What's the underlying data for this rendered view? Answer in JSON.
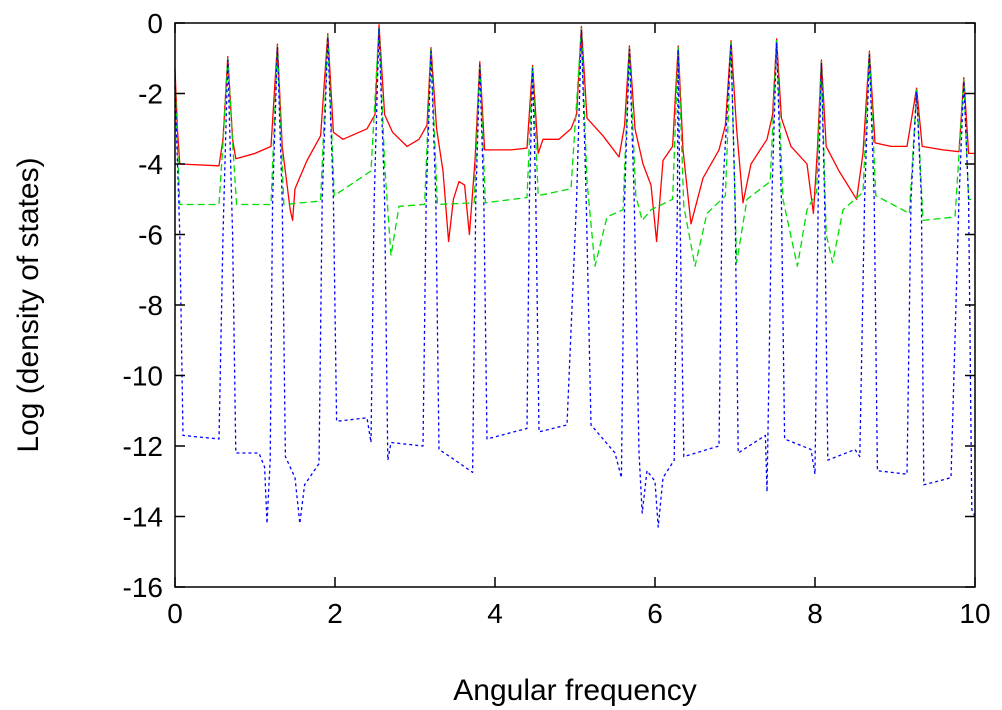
{
  "chart_data": {
    "type": "line",
    "title": "",
    "xlabel": "Angular frequency",
    "ylabel": "Log (density of states)",
    "xlim": [
      0,
      10
    ],
    "ylim": [
      -16,
      0
    ],
    "xticks": [
      0,
      2,
      4,
      6,
      8,
      10
    ],
    "yticks": [
      0,
      -2,
      -4,
      -6,
      -8,
      -10,
      -12,
      -14,
      -16
    ],
    "grid": false,
    "legend": "none",
    "series": [
      {
        "color": "#ff0000",
        "dash": "solid",
        "points": [
          [
            0.0,
            -1.3
          ],
          [
            0.03,
            -3.0
          ],
          [
            0.06,
            -4.0
          ],
          [
            0.55,
            -4.05
          ],
          [
            0.6,
            -3.3
          ],
          [
            0.66,
            -0.95
          ],
          [
            0.72,
            -3.3
          ],
          [
            0.76,
            -3.85
          ],
          [
            1.0,
            -3.7
          ],
          [
            1.2,
            -3.5
          ],
          [
            1.28,
            -0.6
          ],
          [
            1.34,
            -3.5
          ],
          [
            1.44,
            -5.3
          ],
          [
            1.47,
            -5.6
          ],
          [
            1.5,
            -4.7
          ],
          [
            1.65,
            -3.9
          ],
          [
            1.82,
            -3.2
          ],
          [
            1.91,
            -0.3
          ],
          [
            1.98,
            -3.1
          ],
          [
            2.1,
            -3.3
          ],
          [
            2.4,
            -3.0
          ],
          [
            2.5,
            -2.6
          ],
          [
            2.55,
            -0.05
          ],
          [
            2.62,
            -2.6
          ],
          [
            2.72,
            -3.1
          ],
          [
            2.9,
            -3.5
          ],
          [
            3.05,
            -3.3
          ],
          [
            3.15,
            -2.9
          ],
          [
            3.2,
            -0.7
          ],
          [
            3.27,
            -3.0
          ],
          [
            3.35,
            -4.2
          ],
          [
            3.42,
            -6.2
          ],
          [
            3.48,
            -5.0
          ],
          [
            3.55,
            -4.5
          ],
          [
            3.62,
            -4.6
          ],
          [
            3.68,
            -6.0
          ],
          [
            3.75,
            -3.9
          ],
          [
            3.81,
            -1.1
          ],
          [
            3.87,
            -3.6
          ],
          [
            4.0,
            -3.6
          ],
          [
            4.2,
            -3.6
          ],
          [
            4.4,
            -3.55
          ],
          [
            4.47,
            -1.2
          ],
          [
            4.54,
            -3.7
          ],
          [
            4.6,
            -3.3
          ],
          [
            4.8,
            -3.3
          ],
          [
            4.95,
            -3.0
          ],
          [
            5.02,
            -2.6
          ],
          [
            5.08,
            -0.1
          ],
          [
            5.15,
            -2.7
          ],
          [
            5.35,
            -3.2
          ],
          [
            5.55,
            -3.8
          ],
          [
            5.62,
            -2.9
          ],
          [
            5.68,
            -0.65
          ],
          [
            5.75,
            -3.0
          ],
          [
            5.85,
            -4.0
          ],
          [
            5.95,
            -4.6
          ],
          [
            6.02,
            -6.2
          ],
          [
            6.1,
            -3.9
          ],
          [
            6.22,
            -3.5
          ],
          [
            6.29,
            -0.65
          ],
          [
            6.35,
            -3.6
          ],
          [
            6.45,
            -5.7
          ],
          [
            6.6,
            -4.4
          ],
          [
            6.8,
            -3.6
          ],
          [
            6.88,
            -2.9
          ],
          [
            6.95,
            -0.5
          ],
          [
            7.02,
            -3.0
          ],
          [
            7.1,
            -5.1
          ],
          [
            7.2,
            -4.0
          ],
          [
            7.4,
            -3.3
          ],
          [
            7.47,
            -2.6
          ],
          [
            7.52,
            -0.45
          ],
          [
            7.58,
            -2.7
          ],
          [
            7.7,
            -3.5
          ],
          [
            7.9,
            -4.0
          ],
          [
            7.98,
            -5.4
          ],
          [
            8.03,
            -3.6
          ],
          [
            8.08,
            -1.05
          ],
          [
            8.14,
            -3.5
          ],
          [
            8.3,
            -4.2
          ],
          [
            8.52,
            -5.0
          ],
          [
            8.6,
            -3.7
          ],
          [
            8.68,
            -0.8
          ],
          [
            8.75,
            -3.4
          ],
          [
            8.95,
            -3.5
          ],
          [
            9.15,
            -3.5
          ],
          [
            9.27,
            -1.85
          ],
          [
            9.34,
            -3.5
          ],
          [
            9.6,
            -3.6
          ],
          [
            9.8,
            -3.65
          ],
          [
            9.86,
            -1.55
          ],
          [
            9.92,
            -3.7
          ],
          [
            10.0,
            -3.7
          ]
        ]
      },
      {
        "color": "#00dd00",
        "dash": "dashed",
        "points": [
          [
            0.0,
            -1.6
          ],
          [
            0.03,
            -3.4
          ],
          [
            0.06,
            -5.15
          ],
          [
            0.55,
            -5.15
          ],
          [
            0.6,
            -3.4
          ],
          [
            0.66,
            -1.0
          ],
          [
            0.72,
            -3.4
          ],
          [
            0.77,
            -5.15
          ],
          [
            1.2,
            -5.15
          ],
          [
            1.28,
            -0.65
          ],
          [
            1.36,
            -5.15
          ],
          [
            1.82,
            -5.05
          ],
          [
            1.91,
            -0.35
          ],
          [
            1.99,
            -4.9
          ],
          [
            2.45,
            -4.2
          ],
          [
            2.55,
            -0.1
          ],
          [
            2.62,
            -4.0
          ],
          [
            2.7,
            -6.6
          ],
          [
            2.8,
            -5.2
          ],
          [
            3.12,
            -5.15
          ],
          [
            3.2,
            -0.75
          ],
          [
            3.28,
            -5.15
          ],
          [
            3.74,
            -5.1
          ],
          [
            3.81,
            -1.15
          ],
          [
            3.88,
            -5.1
          ],
          [
            4.4,
            -4.95
          ],
          [
            4.47,
            -1.25
          ],
          [
            4.54,
            -4.9
          ],
          [
            4.95,
            -4.7
          ],
          [
            5.08,
            -0.15
          ],
          [
            5.15,
            -4.5
          ],
          [
            5.25,
            -6.9
          ],
          [
            5.4,
            -5.5
          ],
          [
            5.6,
            -5.3
          ],
          [
            5.68,
            -0.7
          ],
          [
            5.76,
            -4.9
          ],
          [
            5.84,
            -5.6
          ],
          [
            5.95,
            -5.3
          ],
          [
            6.22,
            -5.0
          ],
          [
            6.29,
            -0.7
          ],
          [
            6.36,
            -5.2
          ],
          [
            6.5,
            -6.9
          ],
          [
            6.65,
            -5.4
          ],
          [
            6.88,
            -4.9
          ],
          [
            6.95,
            -0.55
          ],
          [
            7.02,
            -6.8
          ],
          [
            7.15,
            -5.0
          ],
          [
            7.44,
            -4.5
          ],
          [
            7.52,
            -0.5
          ],
          [
            7.6,
            -5.0
          ],
          [
            7.78,
            -6.9
          ],
          [
            7.9,
            -5.3
          ],
          [
            8.02,
            -4.8
          ],
          [
            8.08,
            -1.1
          ],
          [
            8.14,
            -6.0
          ],
          [
            8.22,
            -6.8
          ],
          [
            8.35,
            -5.3
          ],
          [
            8.6,
            -4.8
          ],
          [
            8.68,
            -0.85
          ],
          [
            8.76,
            -4.9
          ],
          [
            9.18,
            -5.4
          ],
          [
            9.27,
            -1.9
          ],
          [
            9.35,
            -5.6
          ],
          [
            9.75,
            -5.5
          ],
          [
            9.86,
            -1.6
          ],
          [
            9.92,
            -5.0
          ],
          [
            10.0,
            -5.0
          ]
        ]
      },
      {
        "color": "#0000ff",
        "dash": "dotted",
        "points": [
          [
            0.0,
            -1.8
          ],
          [
            0.06,
            -6.0
          ],
          [
            0.1,
            -11.7
          ],
          [
            0.55,
            -11.8
          ],
          [
            0.6,
            -6.0
          ],
          [
            0.66,
            -1.05
          ],
          [
            0.72,
            -6.0
          ],
          [
            0.76,
            -12.2
          ],
          [
            1.05,
            -12.2
          ],
          [
            1.12,
            -12.6
          ],
          [
            1.15,
            -14.2
          ],
          [
            1.19,
            -12.4
          ],
          [
            1.22,
            -5.0
          ],
          [
            1.28,
            -0.7
          ],
          [
            1.34,
            -5.0
          ],
          [
            1.38,
            -12.3
          ],
          [
            1.5,
            -12.9
          ],
          [
            1.56,
            -14.2
          ],
          [
            1.62,
            -13.1
          ],
          [
            1.8,
            -12.5
          ],
          [
            1.84,
            -5.0
          ],
          [
            1.91,
            -0.4
          ],
          [
            1.98,
            -5.0
          ],
          [
            2.02,
            -11.3
          ],
          [
            2.4,
            -11.2
          ],
          [
            2.45,
            -11.9
          ],
          [
            2.49,
            -5.0
          ],
          [
            2.55,
            -0.15
          ],
          [
            2.62,
            -5.0
          ],
          [
            2.66,
            -12.4
          ],
          [
            2.7,
            -11.9
          ],
          [
            3.1,
            -12.0
          ],
          [
            3.14,
            -5.0
          ],
          [
            3.2,
            -0.8
          ],
          [
            3.26,
            -5.0
          ],
          [
            3.3,
            -12.1
          ],
          [
            3.5,
            -12.4
          ],
          [
            3.72,
            -12.75
          ],
          [
            3.76,
            -5.0
          ],
          [
            3.81,
            -1.2
          ],
          [
            3.86,
            -5.0
          ],
          [
            3.9,
            -11.8
          ],
          [
            4.4,
            -11.5
          ],
          [
            4.43,
            -5.0
          ],
          [
            4.47,
            -1.3
          ],
          [
            4.51,
            -5.0
          ],
          [
            4.55,
            -11.6
          ],
          [
            4.9,
            -11.4
          ],
          [
            5.02,
            -5.0
          ],
          [
            5.08,
            -0.2
          ],
          [
            5.14,
            -5.0
          ],
          [
            5.2,
            -11.4
          ],
          [
            5.5,
            -12.2
          ],
          [
            5.58,
            -12.9
          ],
          [
            5.62,
            -5.0
          ],
          [
            5.68,
            -0.75
          ],
          [
            5.74,
            -5.0
          ],
          [
            5.8,
            -12.2
          ],
          [
            5.84,
            -13.9
          ],
          [
            5.9,
            -12.7
          ],
          [
            6.0,
            -13.0
          ],
          [
            6.04,
            -14.3
          ],
          [
            6.1,
            -12.9
          ],
          [
            6.24,
            -12.4
          ],
          [
            6.28,
            -5.0
          ],
          [
            6.29,
            -0.75
          ],
          [
            6.31,
            -5.0
          ],
          [
            6.36,
            -12.3
          ],
          [
            6.8,
            -12.0
          ],
          [
            6.84,
            -5.0
          ],
          [
            6.95,
            -0.6
          ],
          [
            7.0,
            -5.0
          ],
          [
            7.04,
            -12.2
          ],
          [
            7.38,
            -11.7
          ],
          [
            7.4,
            -13.3
          ],
          [
            7.46,
            -5.0
          ],
          [
            7.52,
            -0.55
          ],
          [
            7.58,
            -5.0
          ],
          [
            7.62,
            -11.8
          ],
          [
            7.95,
            -12.1
          ],
          [
            8.0,
            -12.8
          ],
          [
            8.04,
            -5.0
          ],
          [
            8.08,
            -1.15
          ],
          [
            8.12,
            -5.0
          ],
          [
            8.16,
            -12.4
          ],
          [
            8.5,
            -12.1
          ],
          [
            8.56,
            -12.3
          ],
          [
            8.62,
            -5.0
          ],
          [
            8.68,
            -0.9
          ],
          [
            8.74,
            -5.0
          ],
          [
            8.78,
            -12.7
          ],
          [
            9.15,
            -12.8
          ],
          [
            9.2,
            -5.0
          ],
          [
            9.27,
            -1.95
          ],
          [
            9.33,
            -5.0
          ],
          [
            9.36,
            -13.1
          ],
          [
            9.7,
            -12.9
          ],
          [
            9.8,
            -5.0
          ],
          [
            9.86,
            -1.65
          ],
          [
            9.92,
            -5.0
          ],
          [
            9.96,
            -13.8
          ],
          [
            10.0,
            -14.0
          ]
        ]
      }
    ]
  }
}
